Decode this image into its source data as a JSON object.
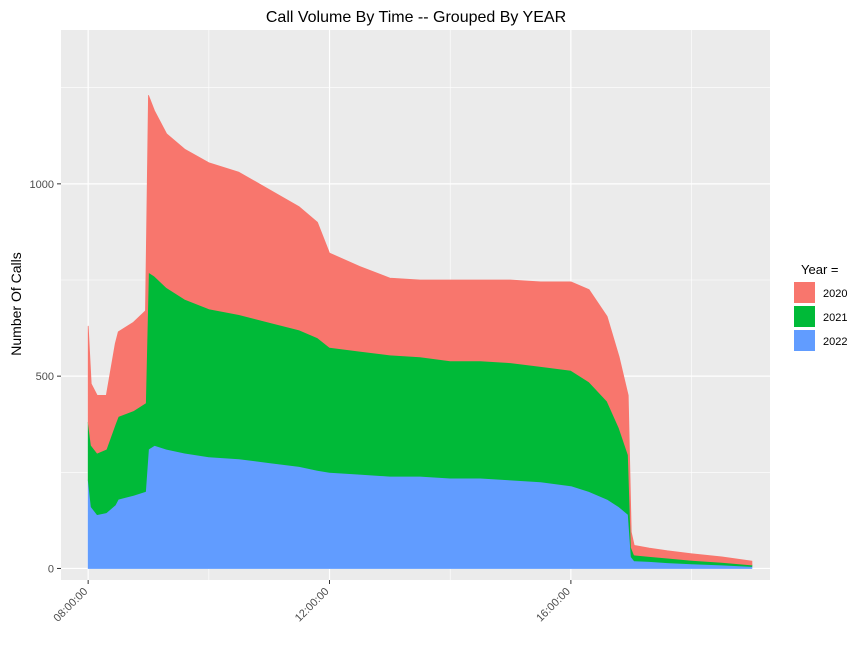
{
  "chart_data": {
    "type": "area",
    "stacked": true,
    "title": "Call Volume By Time -- Grouped By YEAR",
    "xlabel": "",
    "ylabel": "Number Of Calls",
    "x_unit": "hours of day",
    "xlim": [
      7.55,
      19.3
    ],
    "ylim": [
      -30,
      1400
    ],
    "x_ticks": [
      {
        "value": 8,
        "label": "08:00:00"
      },
      {
        "value": 12,
        "label": "12:00:00"
      },
      {
        "value": 16,
        "label": "16:00:00"
      }
    ],
    "y_ticks": [
      {
        "value": 0,
        "label": "0"
      },
      {
        "value": 500,
        "label": "500"
      },
      {
        "value": 1000,
        "label": "1000"
      }
    ],
    "grid": true,
    "legend": {
      "title": "Year =",
      "position": "right"
    },
    "x": [
      8.0,
      8.05,
      8.15,
      8.3,
      8.45,
      8.5,
      8.75,
      8.95,
      9.0,
      9.1,
      9.3,
      9.6,
      10.0,
      10.5,
      11.0,
      11.5,
      11.8,
      12.0,
      12.5,
      13.0,
      13.5,
      14.0,
      14.5,
      15.0,
      15.5,
      16.0,
      16.3,
      16.6,
      16.8,
      16.95,
      17.0,
      17.05,
      17.3,
      17.6,
      18.0,
      18.5,
      19.0
    ],
    "series": [
      {
        "name": "2022",
        "color": "#619CFF",
        "values": [
          230,
          160,
          140,
          145,
          165,
          180,
          190,
          200,
          310,
          320,
          310,
          300,
          290,
          285,
          275,
          265,
          255,
          250,
          245,
          240,
          240,
          235,
          235,
          230,
          225,
          215,
          200,
          180,
          160,
          140,
          30,
          20,
          18,
          15,
          12,
          9,
          5
        ]
      },
      {
        "name": "2021",
        "color": "#00BA38",
        "values": [
          150,
          160,
          160,
          165,
          210,
          215,
          220,
          230,
          460,
          440,
          420,
          400,
          385,
          375,
          365,
          355,
          345,
          325,
          320,
          315,
          310,
          305,
          305,
          305,
          300,
          300,
          285,
          255,
          205,
          155,
          25,
          15,
          13,
          12,
          9,
          7,
          4
        ]
      },
      {
        "name": "2020",
        "color": "#F8766D",
        "values": [
          250,
          160,
          150,
          140,
          210,
          220,
          230,
          240,
          460,
          430,
          400,
          390,
          380,
          370,
          345,
          320,
          300,
          245,
          220,
          200,
          200,
          210,
          210,
          215,
          220,
          230,
          240,
          220,
          185,
          155,
          40,
          25,
          22,
          19,
          17,
          14,
          10
        ]
      }
    ]
  }
}
